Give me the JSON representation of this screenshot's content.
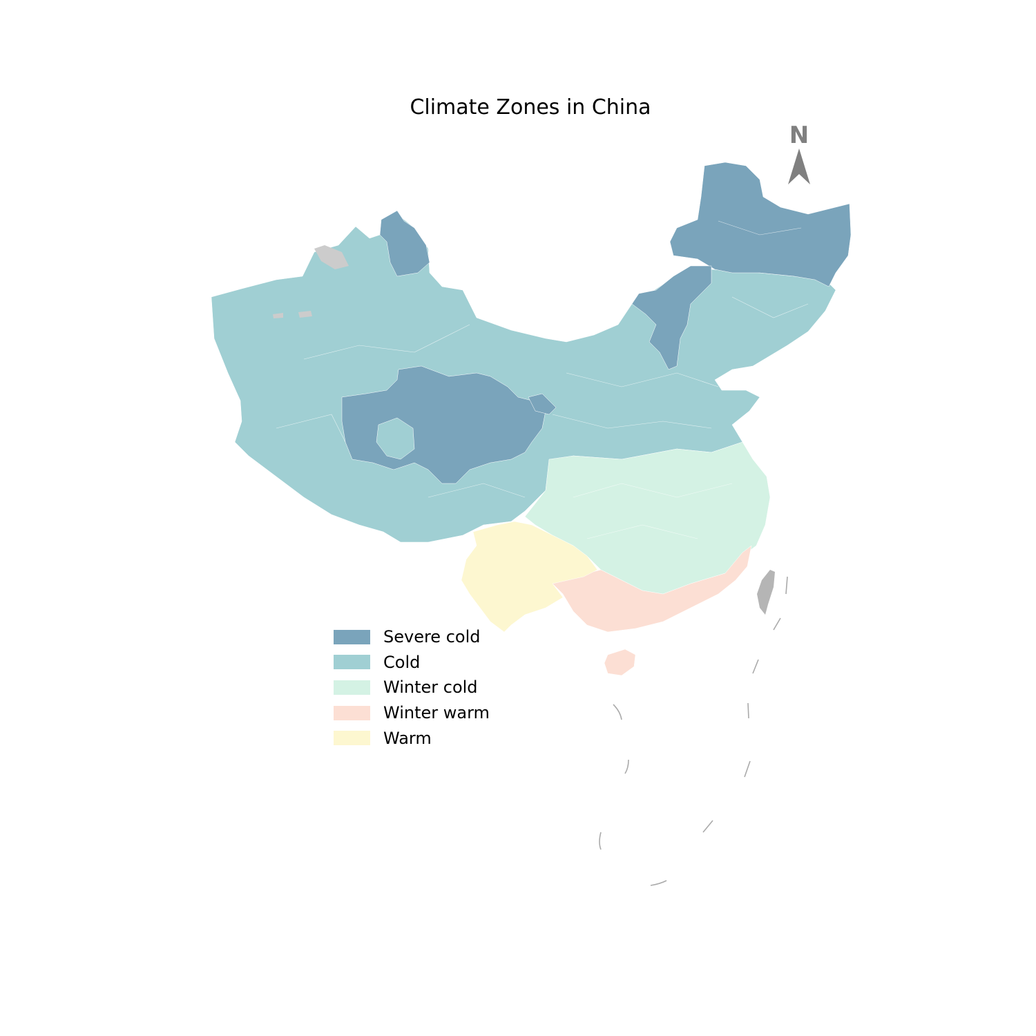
{
  "title": "Climate Zones in China",
  "north_label": "N",
  "zones": [
    {
      "key": "severe_cold",
      "label": "Severe cold",
      "color": "#7aa4bb"
    },
    {
      "key": "cold",
      "label": "Cold",
      "color": "#a0cfd3"
    },
    {
      "key": "winter_cold",
      "label": "Winter cold",
      "color": "#d4f2e4"
    },
    {
      "key": "winter_warm",
      "label": "Winter warm",
      "color": "#fcdfd4"
    },
    {
      "key": "warm",
      "label": "Warm",
      "color": "#fdf7d0"
    }
  ],
  "colors": {
    "no_data": "#cccccc",
    "taiwan": "#b5b5b5",
    "boundary": "#ffffff",
    "nine_dash": "#aaaaaa",
    "north_arrow": "#808080"
  }
}
